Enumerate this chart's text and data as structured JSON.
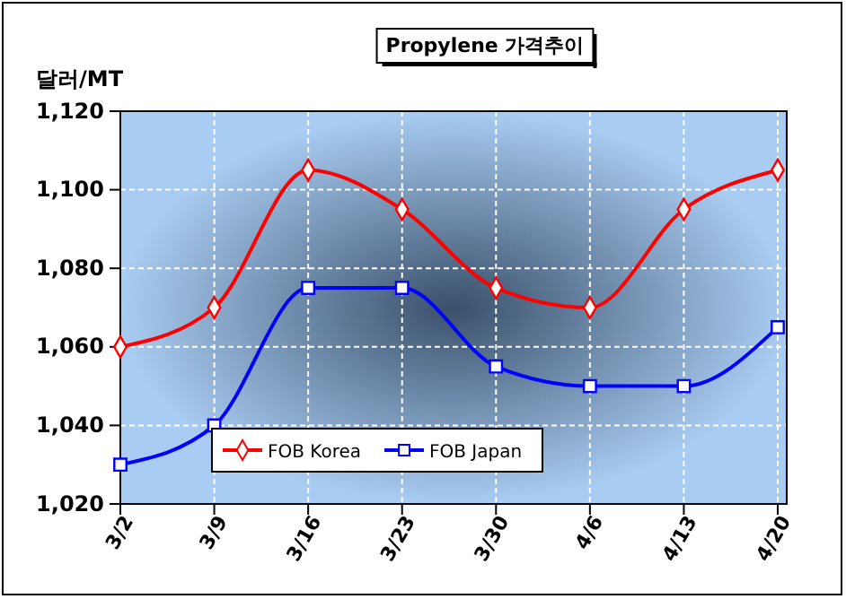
{
  "chart_data": {
    "type": "line",
    "title": "Propylene 가격추이",
    "ylabel": "달러/MT",
    "categories": [
      "3/2",
      "3/9",
      "3/16",
      "3/23",
      "3/30",
      "4/6",
      "4/13",
      "4/20"
    ],
    "series": [
      {
        "name": "FOB Korea",
        "color": "#ff0000",
        "marker": "diamond",
        "values": [
          1060,
          1070,
          1105,
          1095,
          1075,
          1070,
          1095,
          1105
        ]
      },
      {
        "name": "FOB Japan",
        "color": "#0000ff",
        "marker": "square",
        "values": [
          1030,
          1040,
          1075,
          1075,
          1055,
          1050,
          1050,
          1065
        ]
      }
    ],
    "ylim": [
      1020,
      1120
    ],
    "yticks": [
      {
        "value": 1020,
        "label": "1,020"
      },
      {
        "value": 1040,
        "label": "1,040"
      },
      {
        "value": 1060,
        "label": "1,060"
      },
      {
        "value": 1080,
        "label": "1,080"
      },
      {
        "value": 1100,
        "label": "1,100"
      },
      {
        "value": 1120,
        "label": "1,120"
      }
    ],
    "grid": true,
    "legend": "bottom",
    "line_style": "solid"
  }
}
